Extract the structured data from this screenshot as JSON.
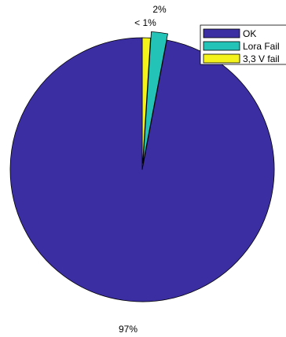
{
  "chart_data": {
    "type": "pie",
    "slices": [
      {
        "name": "OK",
        "value": 97,
        "label": "97%",
        "color": "#3b2ea3"
      },
      {
        "name": "Lora Fail",
        "value": 2,
        "label": "2%",
        "color": "#24c3b8"
      },
      {
        "name": "3,3 V fail",
        "value": 1,
        "label": "< 1%",
        "color": "#f4f41c"
      }
    ],
    "legend": {
      "placement": "top-right",
      "entries": [
        "OK",
        "Lora Fail",
        "3,3 V fail"
      ]
    },
    "exploded_slices": [
      "Lora Fail"
    ]
  }
}
